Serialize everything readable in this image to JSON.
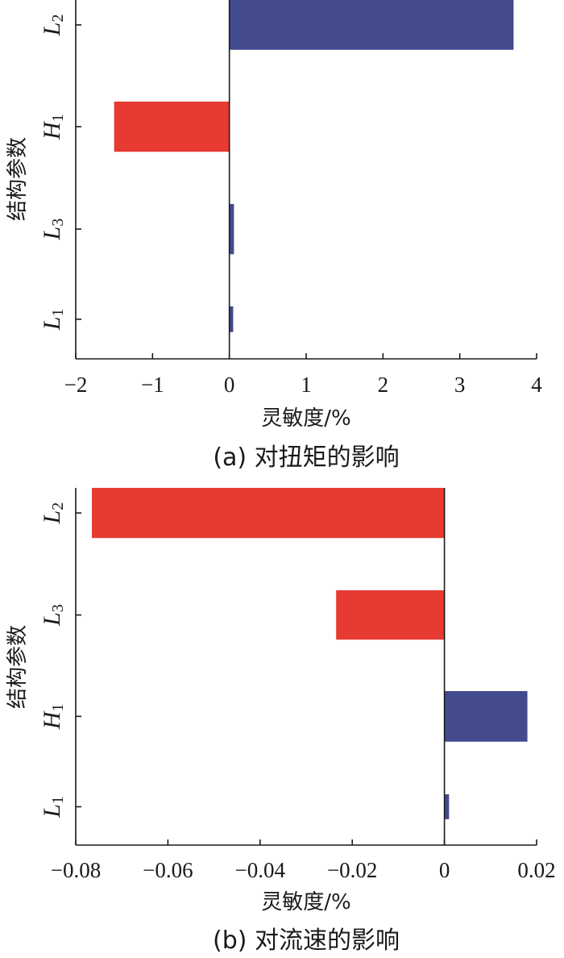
{
  "colors": {
    "positive": "#434a8e",
    "negative": "#e63a32",
    "axis": "#1a1a1a"
  },
  "chart_data": [
    {
      "type": "bar",
      "orientation": "horizontal",
      "caption": "(a)  对扭矩的影响",
      "xlabel": "灵敏度/%",
      "ylabel": "结构参数",
      "xlim": [
        -2,
        4
      ],
      "xticks": [
        "−2",
        "−1",
        "0",
        "1",
        "2",
        "3",
        "4"
      ],
      "xtick_values": [
        -2,
        -1,
        0,
        1,
        2,
        3,
        4
      ],
      "categories": [
        {
          "main": "L",
          "sub": "2"
        },
        {
          "main": "H",
          "sub": "1"
        },
        {
          "main": "L",
          "sub": "3"
        },
        {
          "main": "L",
          "sub": "1"
        }
      ],
      "values": [
        3.7,
        -1.5,
        0.06,
        0.05
      ],
      "grid": false,
      "legend": "none"
    },
    {
      "type": "bar",
      "orientation": "horizontal",
      "caption": "(b)  对流速的影响",
      "xlabel": "灵敏度/%",
      "ylabel": "结构参数",
      "xlim": [
        -0.08,
        0.02
      ],
      "xticks": [
        "−0.08",
        "−0.06",
        "−0.04",
        "−0.02",
        "0",
        "0.02"
      ],
      "xtick_values": [
        -0.08,
        -0.06,
        -0.04,
        -0.02,
        0,
        0.02
      ],
      "categories": [
        {
          "main": "L",
          "sub": "2"
        },
        {
          "main": "L",
          "sub": "3"
        },
        {
          "main": "H",
          "sub": "1"
        },
        {
          "main": "L",
          "sub": "1"
        }
      ],
      "values": [
        -0.0765,
        -0.0235,
        0.018,
        0.001
      ],
      "grid": false,
      "legend": "none"
    }
  ]
}
